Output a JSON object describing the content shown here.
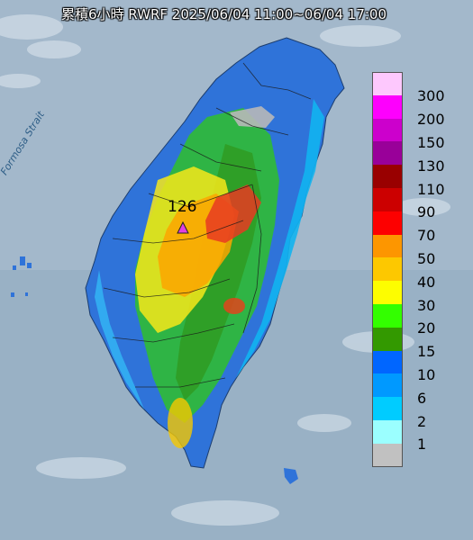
{
  "title": "累積6小時 RWRF 2025/06/04 11:00~06/04 17:00",
  "strait_label": "Formosa Strait",
  "max_marker": {
    "value": "126",
    "icon": "triangle-marker-icon",
    "color": "#e040e0"
  },
  "legend": [
    {
      "label": "300",
      "color": "#fdc8fd"
    },
    {
      "label": "200",
      "color": "#fd00fd"
    },
    {
      "label": "150",
      "color": "#cc00cc"
    },
    {
      "label": "130",
      "color": "#990099"
    },
    {
      "label": "110",
      "color": "#990000"
    },
    {
      "label": "90",
      "color": "#cc0000"
    },
    {
      "label": "70",
      "color": "#fd0000"
    },
    {
      "label": "50",
      "color": "#fd9600"
    },
    {
      "label": "40",
      "color": "#fdc800"
    },
    {
      "label": "30",
      "color": "#fdfd00"
    },
    {
      "label": "20",
      "color": "#33ff00"
    },
    {
      "label": "15",
      "color": "#339900"
    },
    {
      "label": "10",
      "color": "#0066ff"
    },
    {
      "label": "6",
      "color": "#0099ff"
    },
    {
      "label": "2",
      "color": "#00ccff"
    },
    {
      "label": "1",
      "color": "#9bffff"
    },
    {
      "label": "",
      "color": "#c1c1c1"
    }
  ]
}
